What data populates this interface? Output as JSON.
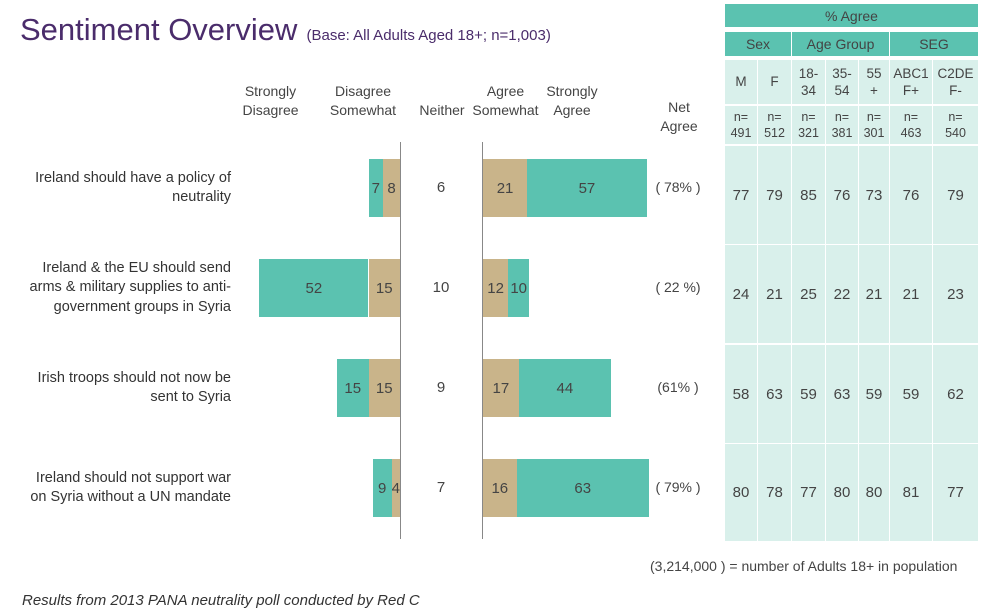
{
  "title": "Sentiment Overview",
  "subtitle": "(Base: All Adults Aged 18+; n=1,003)",
  "colors": {
    "agree_strong": "#5bc2b0",
    "somewhat": "#c9b48a",
    "table_header": "#5bc2b0",
    "table_light": "#d9f0eb",
    "title": "#4a2c6b"
  },
  "headers": {
    "strongly_disagree": [
      "Strongly",
      "Disagree"
    ],
    "disagree_somewhat": [
      "Disagree",
      "Somewhat"
    ],
    "neither": "Neither",
    "agree_somewhat": [
      "Agree",
      "Somewhat"
    ],
    "strongly_agree": [
      "Strongly",
      "Agree"
    ],
    "net_agree": [
      "Net",
      "Agree"
    ]
  },
  "chart_data": {
    "type": "bar",
    "orientation": "horizontal-diverging",
    "categories": [
      "Ireland should have a policy of neutrality",
      "Ireland & the EU should send arms & military supplies to anti-government groups in Syria",
      "Irish troops should not now be sent to Syria",
      "Ireland should not support war on Syria without a UN mandate"
    ],
    "statement_lines": [
      [
        "Ireland should have a policy of",
        "neutrality"
      ],
      [
        "Ireland & the EU should send",
        "arms & military supplies to anti-",
        "government groups in Syria"
      ],
      [
        "Irish troops should not now be",
        "sent to Syria"
      ],
      [
        "Ireland should not support war",
        "on Syria without a UN mandate"
      ]
    ],
    "series": [
      {
        "name": "Strongly Disagree",
        "values": [
          7,
          52,
          15,
          9
        ]
      },
      {
        "name": "Disagree Somewhat",
        "values": [
          8,
          15,
          15,
          4
        ]
      },
      {
        "name": "Neither",
        "values": [
          6,
          10,
          9,
          7
        ]
      },
      {
        "name": "Agree Somewhat",
        "values": [
          21,
          12,
          17,
          16
        ]
      },
      {
        "name": "Strongly Agree",
        "values": [
          57,
          10,
          44,
          63
        ]
      }
    ],
    "net_agree": [
      "( 78% )",
      "( 22 %)",
      "(61% )",
      "( 79% )"
    ]
  },
  "table": {
    "title": "% Agree",
    "groups": [
      "Sex",
      "Age Group",
      "SEG"
    ],
    "columns": [
      {
        "label": [
          "M"
        ],
        "base": [
          "n=",
          "491"
        ]
      },
      {
        "label": [
          "F"
        ],
        "base": [
          "n=",
          "512"
        ]
      },
      {
        "label": [
          "18-",
          "34"
        ],
        "base": [
          "n=",
          "321"
        ]
      },
      {
        "label": [
          "35-",
          "54"
        ],
        "base": [
          "n=",
          "381"
        ]
      },
      {
        "label": [
          "55",
          "+"
        ],
        "base": [
          "n=",
          "301"
        ]
      },
      {
        "label": [
          "ABC1",
          "F+"
        ],
        "base": [
          "n=",
          "463"
        ]
      },
      {
        "label": [
          "C2DE",
          "F-"
        ],
        "base": [
          "n=",
          "540"
        ]
      }
    ],
    "rows": [
      [
        "77",
        "79",
        "85",
        "76",
        "73",
        "76",
        "79"
      ],
      [
        "24",
        "21",
        "25",
        "22",
        "21",
        "21",
        "23"
      ],
      [
        "58",
        "63",
        "59",
        "63",
        "59",
        "59",
        "62"
      ],
      [
        "80",
        "78",
        "77",
        "80",
        "80",
        "81",
        "77"
      ]
    ]
  },
  "footnote": "(3,214,000 ) = number of Adults 18+ in population",
  "source": "Results from 2013 PANA neutrality poll conducted by Red C"
}
